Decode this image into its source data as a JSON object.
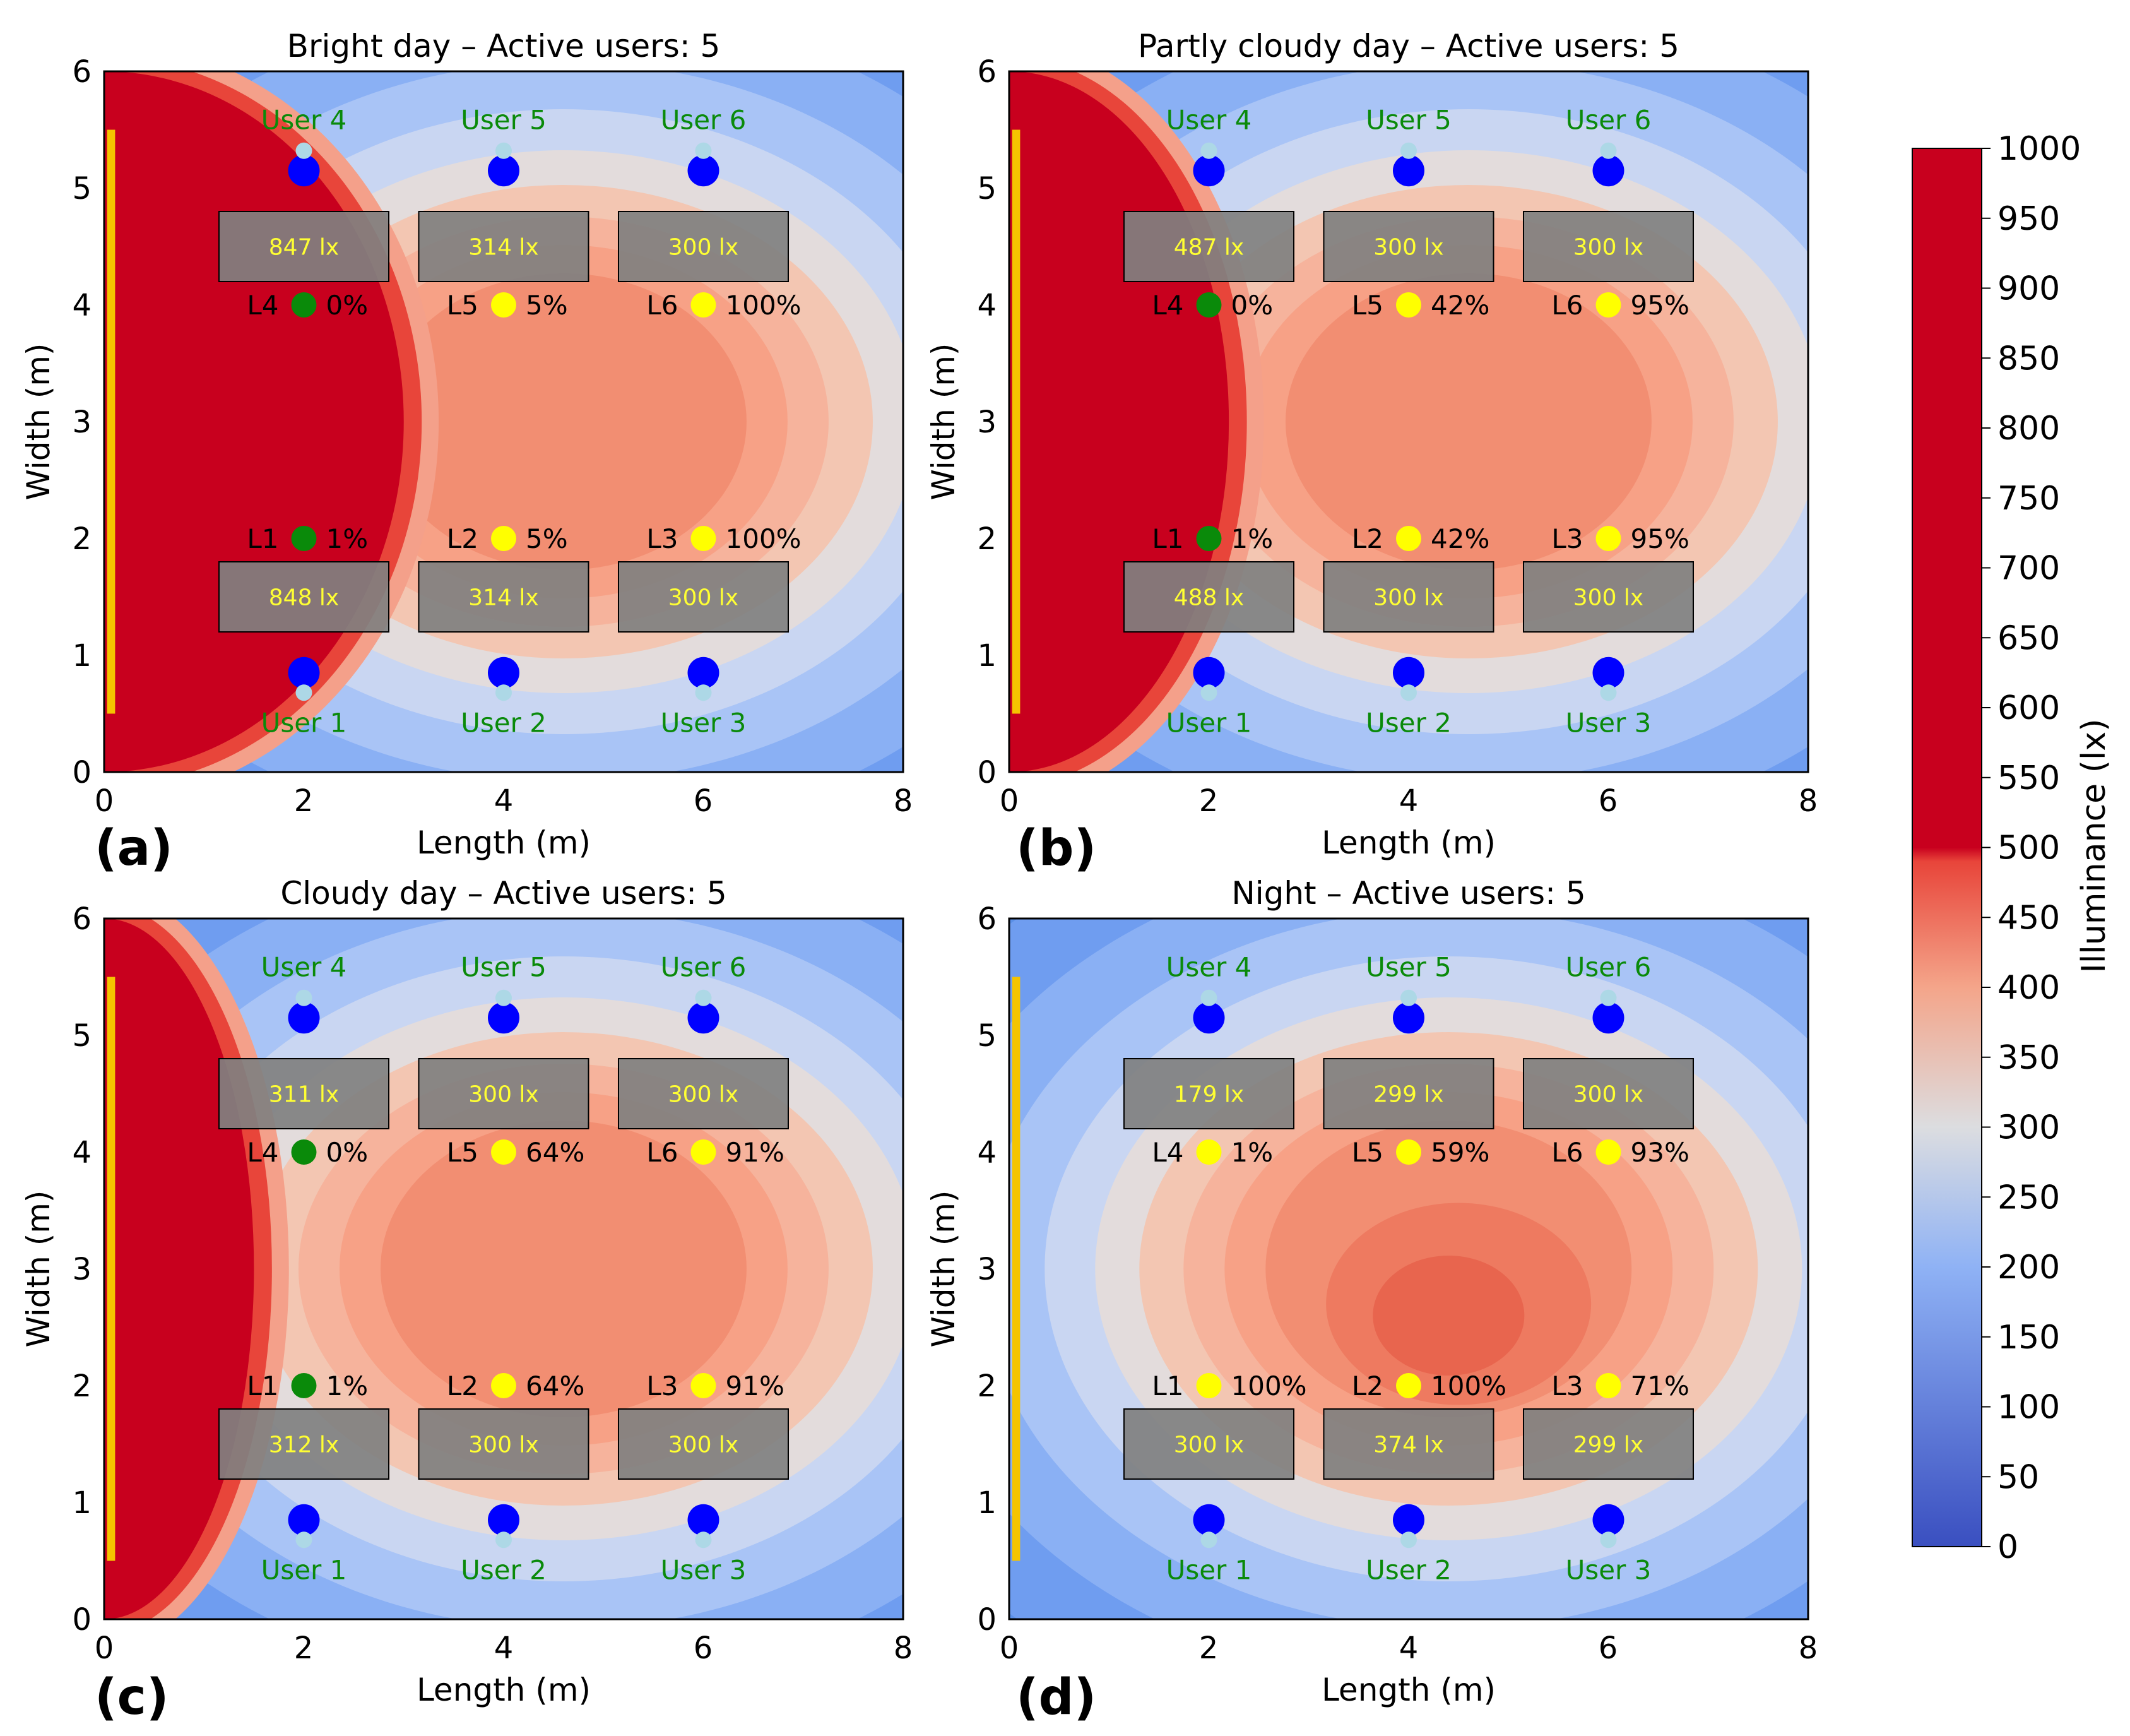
{
  "chart_data": {
    "type": "heatmap",
    "panels": [
      {
        "label": "(a)",
        "title": "Bright day – Active users: 5",
        "xlabel": "Length (m)",
        "ylabel": "Width (m)",
        "xlim": [
          0,
          8
        ],
        "ylim": [
          0,
          6
        ],
        "xticks": [
          "0",
          "2",
          "4",
          "6",
          "8"
        ],
        "yticks": [
          "0",
          "1",
          "2",
          "3",
          "4",
          "5",
          "6"
        ],
        "daylight": 3.0,
        "users": [
          {
            "name": "User 1",
            "x": 2,
            "y": 0.85,
            "label_y": 0.42
          },
          {
            "name": "User 2",
            "x": 4,
            "y": 0.85,
            "label_y": 0.42
          },
          {
            "name": "User 3",
            "x": 6,
            "y": 0.85,
            "label_y": 0.42
          },
          {
            "name": "User 4",
            "x": 2,
            "y": 5.15,
            "label_y": 5.58
          },
          {
            "name": "User 5",
            "x": 4,
            "y": 5.15,
            "label_y": 5.58
          },
          {
            "name": "User 6",
            "x": 6,
            "y": 5.15,
            "label_y": 5.58
          }
        ],
        "desks": [
          {
            "cx": 2,
            "cy": 1.5,
            "value": "848 lx"
          },
          {
            "cx": 4,
            "cy": 1.5,
            "value": "314 lx"
          },
          {
            "cx": 6,
            "cy": 1.5,
            "value": "300 lx"
          },
          {
            "cx": 2,
            "cy": 4.5,
            "value": "847 lx"
          },
          {
            "cx": 4,
            "cy": 4.5,
            "value": "314 lx"
          },
          {
            "cx": 6,
            "cy": 4.5,
            "value": "300 lx"
          }
        ],
        "lamps": [
          {
            "name": "L1",
            "x": 2,
            "y": 2,
            "dim": "1%",
            "state": "green"
          },
          {
            "name": "L2",
            "x": 4,
            "y": 2,
            "dim": "5%",
            "state": "yellow"
          },
          {
            "name": "L3",
            "x": 6,
            "y": 2,
            "dim": "100%",
            "state": "yellow"
          },
          {
            "name": "L4",
            "x": 2,
            "y": 4,
            "dim": "0%",
            "state": "green"
          },
          {
            "name": "L5",
            "x": 4,
            "y": 4,
            "dim": "5%",
            "state": "yellow"
          },
          {
            "name": "L6",
            "x": 6,
            "y": 4,
            "dim": "100%",
            "state": "yellow"
          }
        ]
      },
      {
        "label": "(b)",
        "title": "Partly cloudy day – Active users: 5",
        "xlabel": "Length (m)",
        "ylabel": "Width (m)",
        "xlim": [
          0,
          8
        ],
        "ylim": [
          0,
          6
        ],
        "xticks": [
          "0",
          "2",
          "4",
          "6",
          "8"
        ],
        "yticks": [
          "0",
          "1",
          "2",
          "3",
          "4",
          "5",
          "6"
        ],
        "daylight": 2.2,
        "users": [
          {
            "name": "User 1",
            "x": 2,
            "y": 0.85,
            "label_y": 0.42
          },
          {
            "name": "User 2",
            "x": 4,
            "y": 0.85,
            "label_y": 0.42
          },
          {
            "name": "User 3",
            "x": 6,
            "y": 0.85,
            "label_y": 0.42
          },
          {
            "name": "User 4",
            "x": 2,
            "y": 5.15,
            "label_y": 5.58
          },
          {
            "name": "User 5",
            "x": 4,
            "y": 5.15,
            "label_y": 5.58
          },
          {
            "name": "User 6",
            "x": 6,
            "y": 5.15,
            "label_y": 5.58
          }
        ],
        "desks": [
          {
            "cx": 2,
            "cy": 1.5,
            "value": "488 lx"
          },
          {
            "cx": 4,
            "cy": 1.5,
            "value": "300 lx"
          },
          {
            "cx": 6,
            "cy": 1.5,
            "value": "300 lx"
          },
          {
            "cx": 2,
            "cy": 4.5,
            "value": "487 lx"
          },
          {
            "cx": 4,
            "cy": 4.5,
            "value": "300 lx"
          },
          {
            "cx": 6,
            "cy": 4.5,
            "value": "300 lx"
          }
        ],
        "lamps": [
          {
            "name": "L1",
            "x": 2,
            "y": 2,
            "dim": "1%",
            "state": "green"
          },
          {
            "name": "L2",
            "x": 4,
            "y": 2,
            "dim": "42%",
            "state": "yellow"
          },
          {
            "name": "L3",
            "x": 6,
            "y": 2,
            "dim": "95%",
            "state": "yellow"
          },
          {
            "name": "L4",
            "x": 2,
            "y": 4,
            "dim": "0%",
            "state": "green"
          },
          {
            "name": "L5",
            "x": 4,
            "y": 4,
            "dim": "42%",
            "state": "yellow"
          },
          {
            "name": "L6",
            "x": 6,
            "y": 4,
            "dim": "95%",
            "state": "yellow"
          }
        ]
      },
      {
        "label": "(c)",
        "title": "Cloudy day – Active users: 5",
        "xlabel": "Length (m)",
        "ylabel": "Width (m)",
        "xlim": [
          0,
          8
        ],
        "ylim": [
          0,
          6
        ],
        "xticks": [
          "0",
          "2",
          "4",
          "6",
          "8"
        ],
        "yticks": [
          "0",
          "1",
          "2",
          "3",
          "4",
          "5",
          "6"
        ],
        "daylight": 1.5,
        "users": [
          {
            "name": "User 1",
            "x": 2,
            "y": 0.85,
            "label_y": 0.42
          },
          {
            "name": "User 2",
            "x": 4,
            "y": 0.85,
            "label_y": 0.42
          },
          {
            "name": "User 3",
            "x": 6,
            "y": 0.85,
            "label_y": 0.42
          },
          {
            "name": "User 4",
            "x": 2,
            "y": 5.15,
            "label_y": 5.58
          },
          {
            "name": "User 5",
            "x": 4,
            "y": 5.15,
            "label_y": 5.58
          },
          {
            "name": "User 6",
            "x": 6,
            "y": 5.15,
            "label_y": 5.58
          }
        ],
        "desks": [
          {
            "cx": 2,
            "cy": 1.5,
            "value": "312 lx"
          },
          {
            "cx": 4,
            "cy": 1.5,
            "value": "300 lx"
          },
          {
            "cx": 6,
            "cy": 1.5,
            "value": "300 lx"
          },
          {
            "cx": 2,
            "cy": 4.5,
            "value": "311 lx"
          },
          {
            "cx": 4,
            "cy": 4.5,
            "value": "300 lx"
          },
          {
            "cx": 6,
            "cy": 4.5,
            "value": "300 lx"
          }
        ],
        "lamps": [
          {
            "name": "L1",
            "x": 2,
            "y": 2,
            "dim": "1%",
            "state": "green"
          },
          {
            "name": "L2",
            "x": 4,
            "y": 2,
            "dim": "64%",
            "state": "yellow"
          },
          {
            "name": "L3",
            "x": 6,
            "y": 2,
            "dim": "91%",
            "state": "yellow"
          },
          {
            "name": "L4",
            "x": 2,
            "y": 4,
            "dim": "0%",
            "state": "green"
          },
          {
            "name": "L5",
            "x": 4,
            "y": 4,
            "dim": "64%",
            "state": "yellow"
          },
          {
            "name": "L6",
            "x": 6,
            "y": 4,
            "dim": "91%",
            "state": "yellow"
          }
        ]
      },
      {
        "label": "(d)",
        "title": "Night – Active users: 5",
        "xlabel": "Length (m)",
        "ylabel": "Width (m)",
        "xlim": [
          0,
          8
        ],
        "ylim": [
          0,
          6
        ],
        "xticks": [
          "0",
          "2",
          "4",
          "6",
          "8"
        ],
        "yticks": [
          "0",
          "1",
          "2",
          "3",
          "4",
          "5",
          "6"
        ],
        "daylight": 0,
        "users": [
          {
            "name": "User 1",
            "x": 2,
            "y": 0.85,
            "label_y": 0.42
          },
          {
            "name": "User 2",
            "x": 4,
            "y": 0.85,
            "label_y": 0.42
          },
          {
            "name": "User 3",
            "x": 6,
            "y": 0.85,
            "label_y": 0.42
          },
          {
            "name": "User 4",
            "x": 2,
            "y": 5.15,
            "label_y": 5.58
          },
          {
            "name": "User 5",
            "x": 4,
            "y": 5.15,
            "label_y": 5.58
          },
          {
            "name": "User 6",
            "x": 6,
            "y": 5.15,
            "label_y": 5.58
          }
        ],
        "desks": [
          {
            "cx": 2,
            "cy": 1.5,
            "value": "300 lx"
          },
          {
            "cx": 4,
            "cy": 1.5,
            "value": "374 lx"
          },
          {
            "cx": 6,
            "cy": 1.5,
            "value": "299 lx"
          },
          {
            "cx": 2,
            "cy": 4.5,
            "value": "179 lx"
          },
          {
            "cx": 4,
            "cy": 4.5,
            "value": "299 lx"
          },
          {
            "cx": 6,
            "cy": 4.5,
            "value": "300 lx"
          }
        ],
        "lamps": [
          {
            "name": "L1",
            "x": 2,
            "y": 2,
            "dim": "100%",
            "state": "yellow"
          },
          {
            "name": "L2",
            "x": 4,
            "y": 2,
            "dim": "100%",
            "state": "yellow"
          },
          {
            "name": "L3",
            "x": 6,
            "y": 2,
            "dim": "71%",
            "state": "yellow"
          },
          {
            "name": "L4",
            "x": 2,
            "y": 4,
            "dim": "1%",
            "state": "yellow"
          },
          {
            "name": "L5",
            "x": 4,
            "y": 4,
            "dim": "59%",
            "state": "yellow"
          },
          {
            "name": "L6",
            "x": 6,
            "y": 4,
            "dim": "93%",
            "state": "yellow"
          }
        ]
      }
    ],
    "colorbar": {
      "label": "Illuminance (lx)",
      "min": 0,
      "max": 1000,
      "ticks": [
        "0",
        "50",
        "100",
        "150",
        "200",
        "250",
        "300",
        "350",
        "400",
        "450",
        "500",
        "550",
        "600",
        "650",
        "700",
        "750",
        "800",
        "850",
        "900",
        "950",
        "1000"
      ]
    },
    "colors": {
      "saturated": "#c8001e",
      "lamp_on": "#ffff00",
      "lamp_off": "#0a8a0a",
      "user": "#0000ff",
      "user_head": "#add8e6",
      "desk": "#808080",
      "window": "#f5c400"
    }
  }
}
